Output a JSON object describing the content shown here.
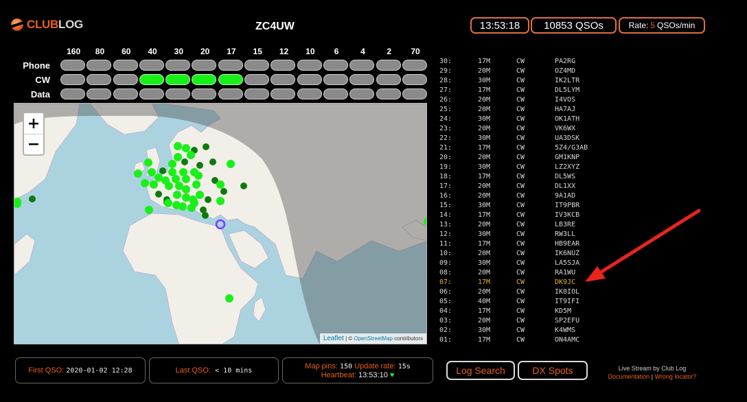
{
  "brand": {
    "club": "CLUB",
    "log": "LOG"
  },
  "callsign": "ZC4UW",
  "header": {
    "time": "13:53:18",
    "qsos": "10853 QSOs",
    "rate_label": "Rate:",
    "rate_value": "5",
    "rate_unit": "QSOs/min"
  },
  "bands": [
    "160",
    "80",
    "60",
    "40",
    "30",
    "20",
    "17",
    "15",
    "12",
    "10",
    "6",
    "4",
    "2",
    "70"
  ],
  "modes": [
    {
      "label": "Phone",
      "active": []
    },
    {
      "label": "CW",
      "active": [
        "40",
        "30",
        "20",
        "17"
      ]
    },
    {
      "label": "Data",
      "active": []
    }
  ],
  "map": {
    "zoom_in": "+",
    "zoom_out": "−",
    "attribution": {
      "leaflet": "Leaflet",
      "sep": " | © ",
      "osm": "OpenStreetMap",
      "suffix": " contributors"
    },
    "colors": {
      "recent_pin": "#19f019",
      "older_pin": "#0e7a0e",
      "station": "#7a3cff"
    }
  },
  "qsos": [
    {
      "num": "30:",
      "band": "17M",
      "mode": "CW",
      "call": "PA2RG"
    },
    {
      "num": "29:",
      "band": "20M",
      "mode": "CW",
      "call": "OZ4MD"
    },
    {
      "num": "28:",
      "band": "30M",
      "mode": "CW",
      "call": "IK2LTR"
    },
    {
      "num": "27:",
      "band": "17M",
      "mode": "CW",
      "call": "DL5LYM"
    },
    {
      "num": "26:",
      "band": "20M",
      "mode": "CW",
      "call": "I4VOS"
    },
    {
      "num": "25:",
      "band": "20M",
      "mode": "CW",
      "call": "HA7AJ"
    },
    {
      "num": "24:",
      "band": "30M",
      "mode": "CW",
      "call": "OK1ATH"
    },
    {
      "num": "23:",
      "band": "20M",
      "mode": "CW",
      "call": "VK6WX"
    },
    {
      "num": "22:",
      "band": "30M",
      "mode": "CW",
      "call": "UA3DSK"
    },
    {
      "num": "21:",
      "band": "17M",
      "mode": "CW",
      "call": "5Z4/G3AB"
    },
    {
      "num": "20:",
      "band": "20M",
      "mode": "CW",
      "call": "GM1KNP"
    },
    {
      "num": "19:",
      "band": "30M",
      "mode": "CW",
      "call": "LZ2XYZ"
    },
    {
      "num": "18:",
      "band": "17M",
      "mode": "CW",
      "call": "DL5WS"
    },
    {
      "num": "17:",
      "band": "20M",
      "mode": "CW",
      "call": "DL1XX"
    },
    {
      "num": "16:",
      "band": "20M",
      "mode": "CW",
      "call": "9A1AD"
    },
    {
      "num": "15:",
      "band": "30M",
      "mode": "CW",
      "call": "IT9PBR"
    },
    {
      "num": "14:",
      "band": "17M",
      "mode": "CW",
      "call": "IV3KCB"
    },
    {
      "num": "13:",
      "band": "20M",
      "mode": "CW",
      "call": "LB3RE"
    },
    {
      "num": "12:",
      "band": "30M",
      "mode": "CW",
      "call": "RW3LL"
    },
    {
      "num": "11:",
      "band": "17M",
      "mode": "CW",
      "call": "HB9EAR"
    },
    {
      "num": "10:",
      "band": "20M",
      "mode": "CW",
      "call": "IK6NUZ"
    },
    {
      "num": "09:",
      "band": "30M",
      "mode": "CW",
      "call": "LA5SJA"
    },
    {
      "num": "08:",
      "band": "20M",
      "mode": "CW",
      "call": "RA1WU"
    },
    {
      "num": "07:",
      "band": "17M",
      "mode": "CW",
      "call": "DK9JC",
      "highlight": true
    },
    {
      "num": "06:",
      "band": "20M",
      "mode": "CW",
      "call": "IK0IOL"
    },
    {
      "num": "05:",
      "band": "40M",
      "mode": "CW",
      "call": "IT9IFI"
    },
    {
      "num": "04:",
      "band": "17M",
      "mode": "CW",
      "call": "KD5M"
    },
    {
      "num": "03:",
      "band": "20M",
      "mode": "CW",
      "call": "SP2EFU"
    },
    {
      "num": "02:",
      "band": "30M",
      "mode": "CW",
      "call": "K4WMS"
    },
    {
      "num": "01:",
      "band": "17M",
      "mode": "CW",
      "call": "ON4AMC"
    }
  ],
  "footer": {
    "first_qso_label": "First QSO:",
    "first_qso_value": "2020-01-02 12:28",
    "last_qso_label": "Last QSO:",
    "last_qso_value": "< 10 mins",
    "map_pins_label": "Map pins:",
    "map_pins_value": "150",
    "update_rate_label": "Update rate:",
    "update_rate_value": "15s",
    "heartbeat_label": "Heartbeat:",
    "heartbeat_value": "13:53:10",
    "log_search": "Log Search",
    "dx_spots": "DX Spots",
    "live_stream": "Live Stream by Club Log",
    "documentation": "Documentation",
    "link_sep": " | ",
    "wrong_locator": "Wrong locator?"
  },
  "annotation": {
    "color": "#e8241c"
  }
}
